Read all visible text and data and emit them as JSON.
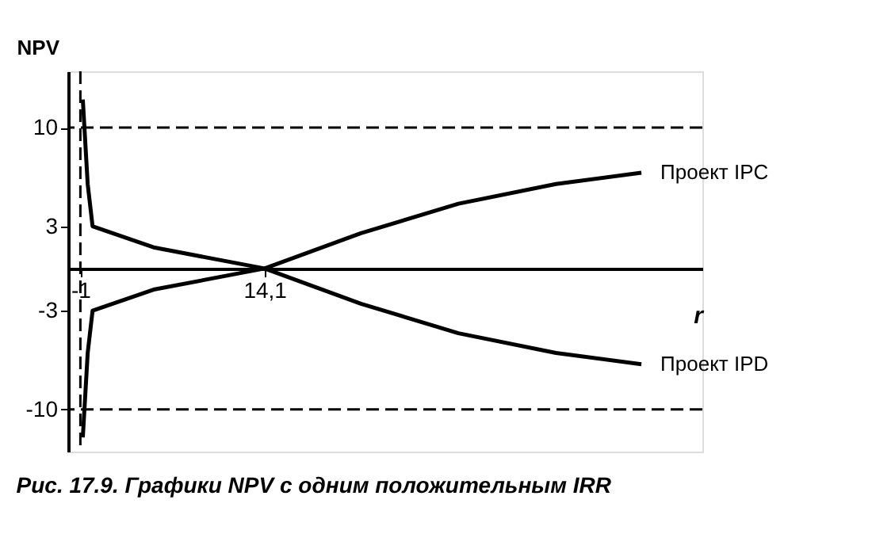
{
  "chart_data": {
    "type": "line",
    "title": "Рис. 17.9. Графики NPV с одним положительным IRR",
    "xlabel": "r",
    "ylabel": "NPV",
    "series": [
      {
        "name": "Проект IPC",
        "color": "#000000",
        "x": [
          -0.8,
          -0.4,
          0,
          5,
          14.1,
          22,
          30,
          38,
          45
        ],
        "values": [
          -12,
          -6,
          -3,
          -1.5,
          0,
          2.5,
          4.6,
          6,
          6.8
        ]
      },
      {
        "name": "Проект IPD",
        "color": "#000000",
        "x": [
          -0.8,
          -0.4,
          0,
          5,
          14.1,
          22,
          30,
          38,
          45
        ],
        "values": [
          12,
          6,
          3,
          1.5,
          0,
          -2.5,
          -4.6,
          -6,
          -6.8
        ]
      }
    ],
    "xlim": [
      -2,
      50
    ],
    "ylim": [
      -13,
      14
    ],
    "xticks": [
      -1,
      {
        "value": 14.1,
        "label": "14,1"
      }
    ],
    "yticks": [
      -10,
      -3,
      3,
      10
    ],
    "ref_lines": [
      {
        "axis": "y",
        "value": 10,
        "color": "#000000",
        "line_style": "dashed"
      },
      {
        "axis": "y",
        "value": -10,
        "color": "#000000",
        "line_style": "dashed"
      },
      {
        "axis": "x",
        "value": -1,
        "color": "#000000",
        "line_style": "dashed"
      }
    ],
    "grid": false,
    "legend": false,
    "line_style": "solid",
    "marker": "none"
  }
}
